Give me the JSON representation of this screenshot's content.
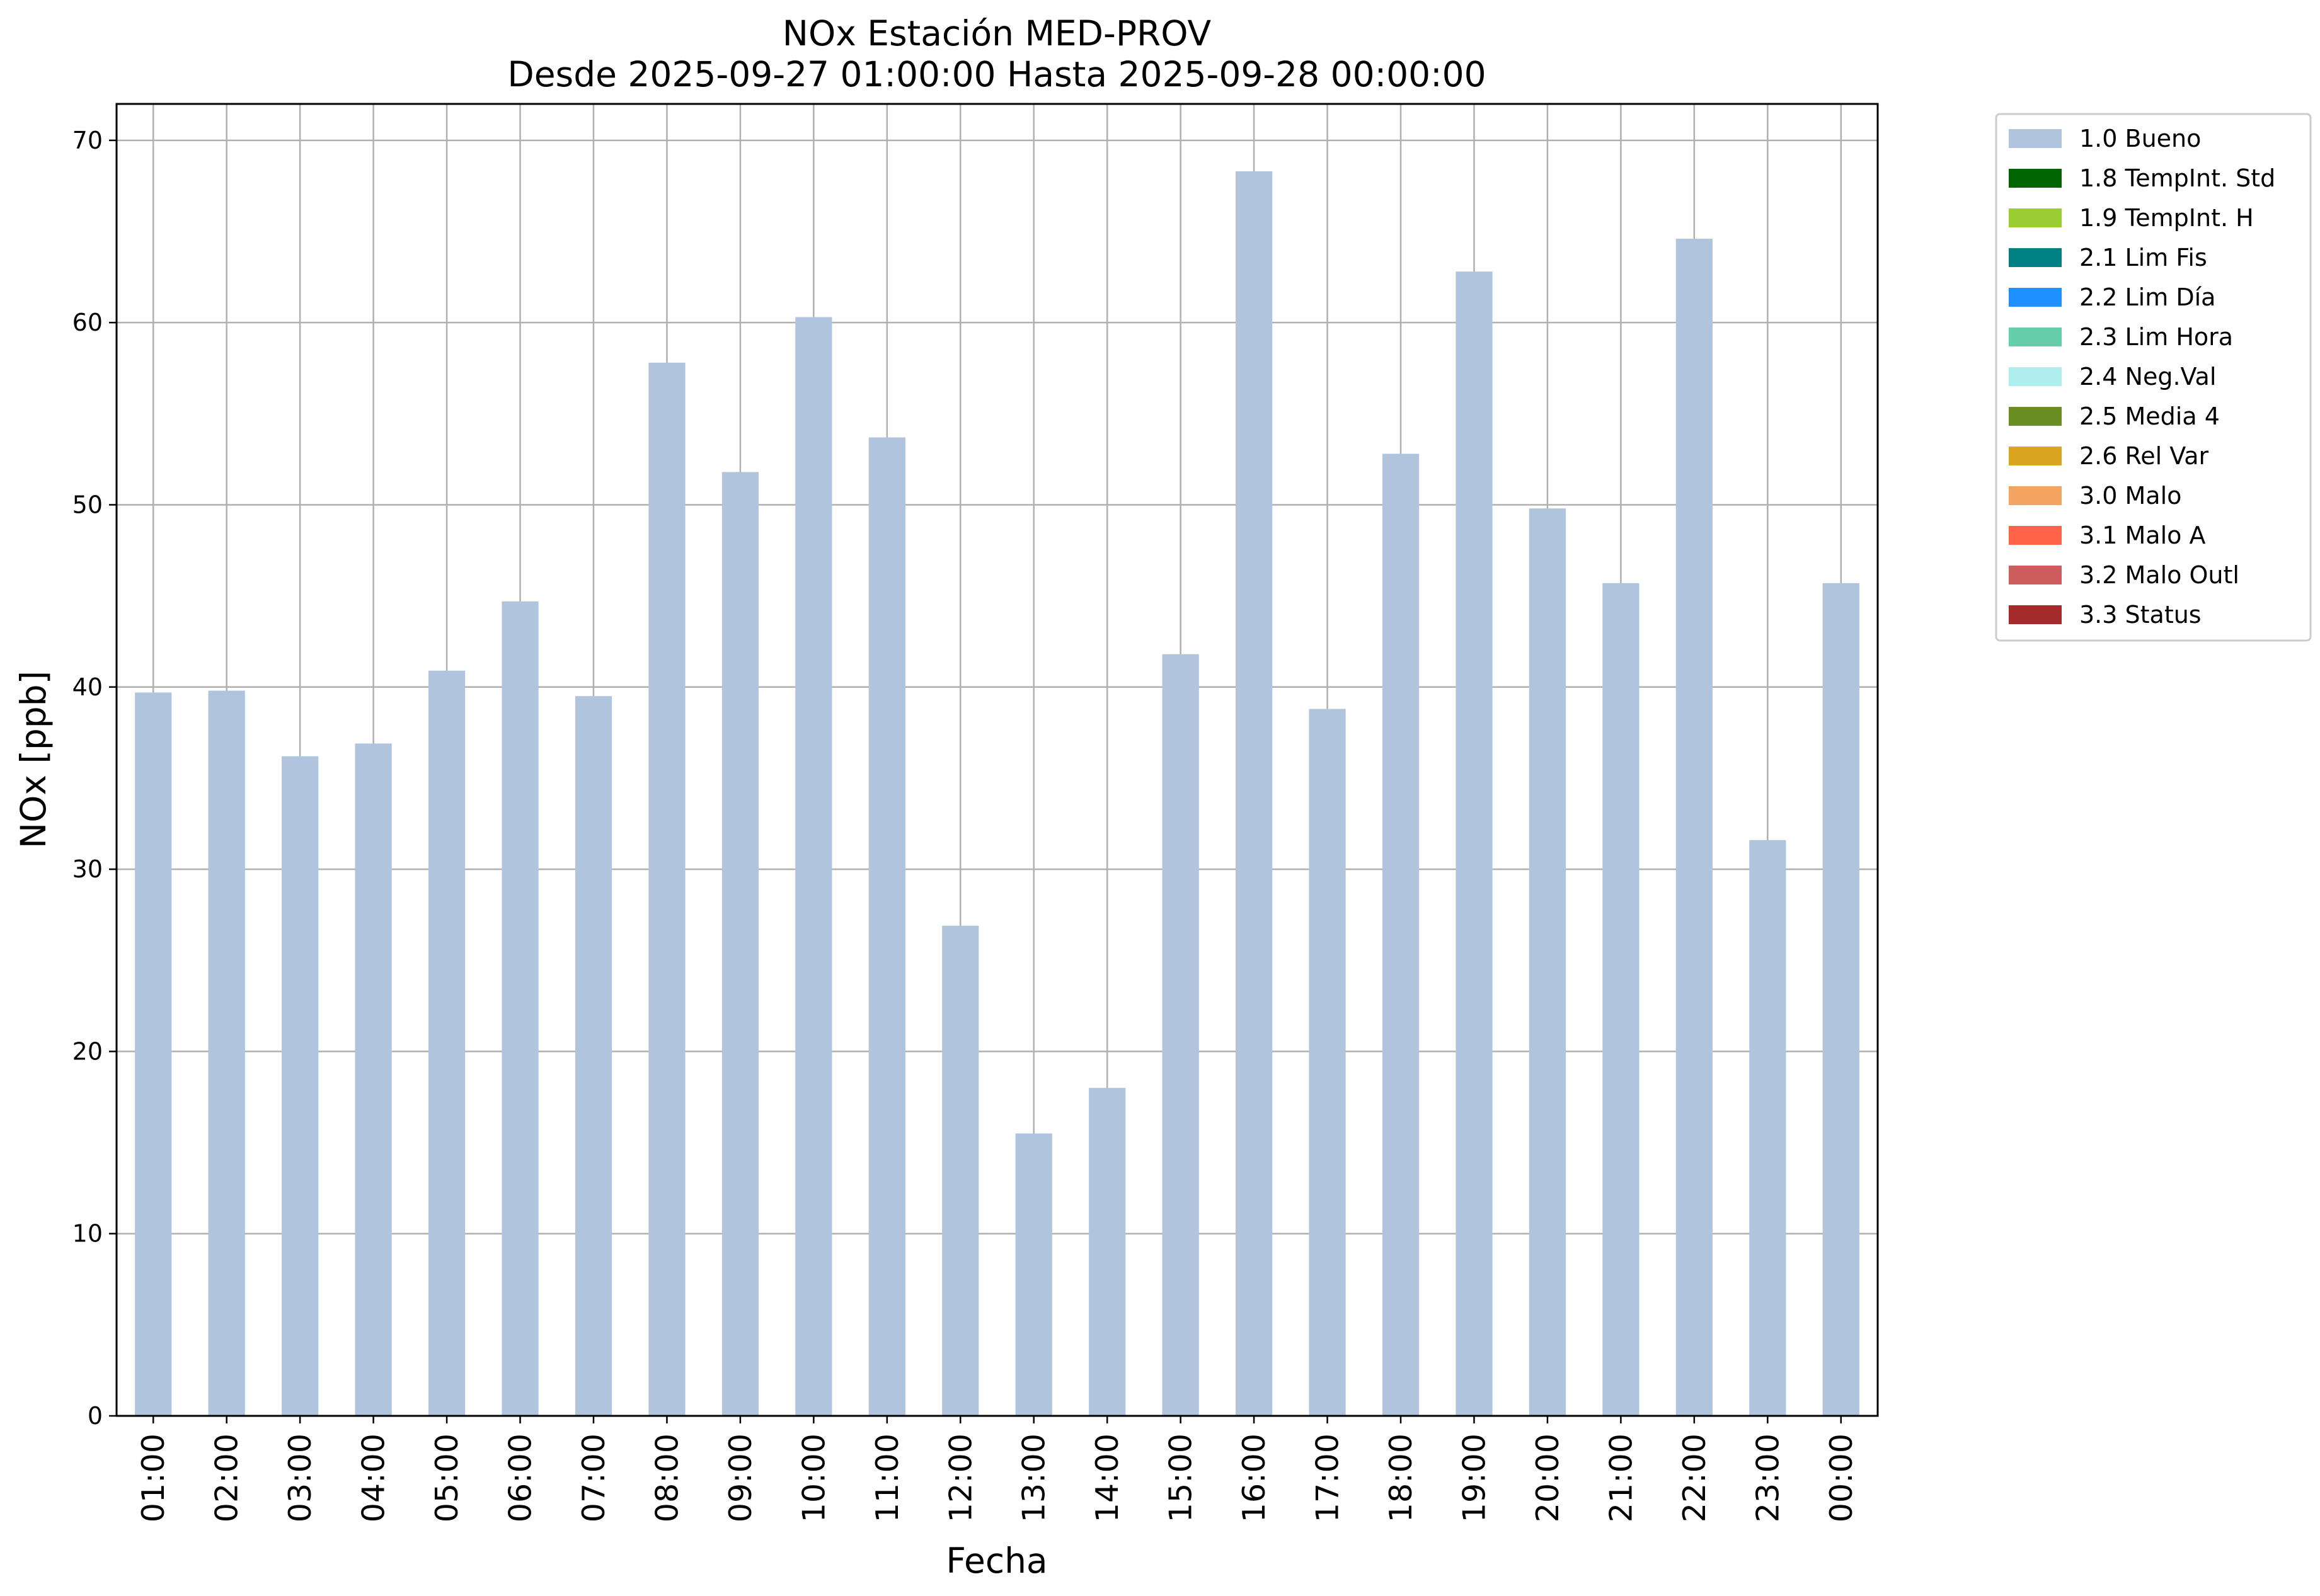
{
  "chart_data": {
    "type": "bar",
    "title_line1": "NOx Estación MED-PROV",
    "title_line2": "Desde 2025-09-27 01:00:00 Hasta 2025-09-28 00:00:00",
    "xlabel": "Fecha",
    "ylabel": "NOx [ppb]",
    "ylim": [
      0,
      72
    ],
    "yticks": [
      0,
      10,
      20,
      30,
      40,
      50,
      60,
      70
    ],
    "grid": true,
    "legend_position": "outside-right-top",
    "categories": [
      "01:00",
      "02:00",
      "03:00",
      "04:00",
      "05:00",
      "06:00",
      "07:00",
      "08:00",
      "09:00",
      "10:00",
      "11:00",
      "12:00",
      "13:00",
      "14:00",
      "15:00",
      "16:00",
      "17:00",
      "18:00",
      "19:00",
      "20:00",
      "21:00",
      "22:00",
      "23:00",
      "00:00"
    ],
    "series": [
      {
        "name": "1.0 Bueno",
        "color": "#b0c4de",
        "values": [
          39.7,
          39.8,
          36.2,
          36.9,
          40.9,
          44.7,
          39.5,
          57.8,
          51.8,
          60.3,
          53.7,
          26.9,
          15.5,
          18.0,
          41.8,
          68.3,
          38.8,
          52.8,
          62.8,
          49.8,
          45.7,
          64.6,
          31.6,
          45.7
        ]
      }
    ],
    "legend": [
      {
        "label": "1.0 Bueno",
        "color": "#b0c4de"
      },
      {
        "label": "1.8 TempInt. Std",
        "color": "#006400"
      },
      {
        "label": "1.9 TempInt. H",
        "color": "#9acd32"
      },
      {
        "label": "2.1 Lim Fis",
        "color": "#008080"
      },
      {
        "label": "2.2 Lim Día",
        "color": "#1e90ff"
      },
      {
        "label": "2.3 Lim Hora",
        "color": "#66cdaa"
      },
      {
        "label": "2.4 Neg.Val",
        "color": "#afeeee"
      },
      {
        "label": "2.5 Media 4",
        "color": "#6b8e23"
      },
      {
        "label": "2.6 Rel Var",
        "color": "#daa520"
      },
      {
        "label": "3.0 Malo",
        "color": "#f4a460"
      },
      {
        "label": "3.1 Malo A",
        "color": "#ff6347"
      },
      {
        "label": "3.2 Malo Outl",
        "color": "#cd5c5c"
      },
      {
        "label": "3.3 Status",
        "color": "#a52a2a"
      }
    ]
  }
}
